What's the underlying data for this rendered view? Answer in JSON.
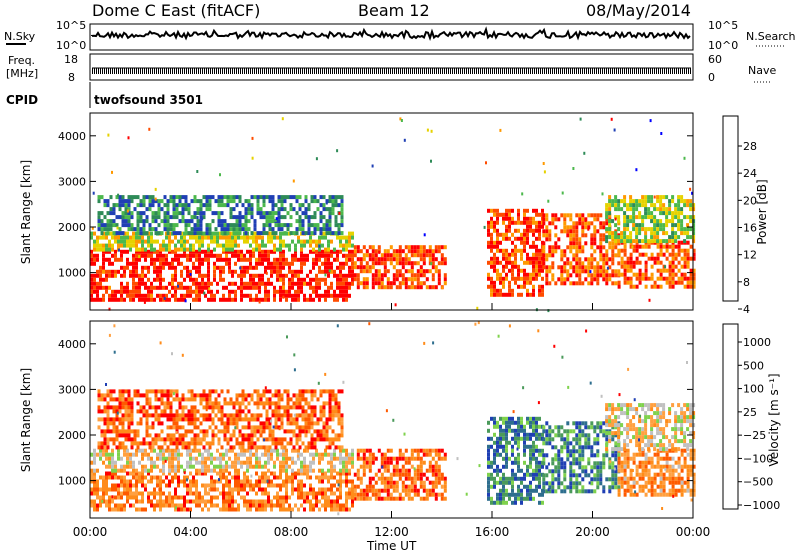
{
  "header": {
    "radar_title": "Dome C East (fitACF)",
    "beam": "Beam 12",
    "date": "08/May/2014"
  },
  "top_panels": {
    "nsky_label": "N.Sky",
    "nsky_ticks": [
      "10^5",
      "10^0"
    ],
    "nsearch_label": "N.Search",
    "nsearch_ticks": [
      "10^5",
      "10^0"
    ],
    "freq_label_1": "Freq.",
    "freq_label_2": "[MHz]",
    "freq_ticks": [
      "18",
      "8"
    ],
    "nave_label": "Nave",
    "nave_ticks": [
      "60",
      "0"
    ],
    "cpid_label": "CPID",
    "cpid_value": "twofsound 3501"
  },
  "x_axis": {
    "ticks": [
      "00:00",
      "04:00",
      "08:00",
      "12:00",
      "16:00",
      "20:00",
      "00:00"
    ],
    "label": "Time UT"
  },
  "chart_data": [
    {
      "type": "heatmap",
      "title": "Power",
      "ylabel": "Slant Range [km]",
      "xlabel": "Time UT",
      "x_range_hours": [
        0,
        24
      ],
      "ylim": [
        180,
        4500
      ],
      "y_ticks": [
        "1000",
        "2000",
        "3000",
        "4000"
      ],
      "colorbar": {
        "label": "Power [dB]",
        "ticks": [
          "28",
          "24",
          "20",
          "16",
          "12",
          "8",
          "4"
        ],
        "range": [
          0,
          30
        ],
        "colors": [
          "#0000ff",
          "#1f3fb4",
          "#2e8b57",
          "#4cb84c",
          "#e6d200",
          "#ff9900",
          "#ff4c00",
          "#ff0000"
        ]
      },
      "regions": [
        {
          "t0": 0.0,
          "t1": 10.5,
          "r0": 400,
          "r1": 1500,
          "level": 0.92
        },
        {
          "t0": 0.0,
          "t1": 10.5,
          "r0": 1500,
          "r1": 1900,
          "level": 0.55
        },
        {
          "t0": 0.3,
          "t1": 10.0,
          "r0": 1900,
          "r1": 2700,
          "level": 0.3
        },
        {
          "t0": 10.5,
          "t1": 14.2,
          "r0": 700,
          "r1": 1600,
          "level": 0.85
        },
        {
          "t0": 15.8,
          "t1": 18.0,
          "r0": 500,
          "r1": 2400,
          "level": 0.85
        },
        {
          "t0": 18.0,
          "t1": 21.0,
          "r0": 800,
          "r1": 2300,
          "level": 0.8
        },
        {
          "t0": 21.0,
          "t1": 24.0,
          "r0": 700,
          "r1": 1700,
          "level": 0.8
        },
        {
          "t0": 20.5,
          "t1": 24.0,
          "r0": 1700,
          "r1": 2700,
          "level": 0.5
        }
      ]
    },
    {
      "type": "heatmap",
      "title": "Velocity",
      "ylabel": "Slant Range [km]",
      "xlabel": "Time UT",
      "x_range_hours": [
        0,
        24
      ],
      "ylim": [
        180,
        4500
      ],
      "y_ticks": [
        "1000",
        "2000",
        "3000",
        "4000"
      ],
      "colorbar": {
        "label": "Velocity [m s⁻¹]",
        "ticks": [
          "1000",
          "500",
          "100",
          "25",
          "−25",
          "−100",
          "−500",
          "−1000"
        ],
        "range": [
          -1000,
          1000
        ],
        "colors": [
          "#ff0000",
          "#ff5a00",
          "#ff8c1a",
          "#ffa040",
          "#c0c0c0",
          "#7fd24c",
          "#4a9a5a",
          "#2e6e8e",
          "#1f3fb4"
        ]
      },
      "regions": [
        {
          "t0": 0.0,
          "t1": 10.5,
          "r0": 400,
          "r1": 1200,
          "level": 0.25
        },
        {
          "t0": 0.0,
          "t1": 10.5,
          "r0": 1200,
          "r1": 1700,
          "level": 0.45
        },
        {
          "t0": 0.3,
          "t1": 10.0,
          "r0": 1700,
          "r1": 3000,
          "level": 0.2
        },
        {
          "t0": 10.5,
          "t1": 14.2,
          "r0": 600,
          "r1": 1700,
          "level": 0.2
        },
        {
          "t0": 15.8,
          "t1": 18.0,
          "r0": 500,
          "r1": 2400,
          "level": 0.8
        },
        {
          "t0": 18.0,
          "t1": 21.0,
          "r0": 800,
          "r1": 2300,
          "level": 0.78
        },
        {
          "t0": 21.0,
          "t1": 24.0,
          "r0": 700,
          "r1": 1700,
          "level": 0.3
        },
        {
          "t0": 20.5,
          "t1": 24.0,
          "r0": 1700,
          "r1": 2700,
          "level": 0.45
        }
      ]
    }
  ]
}
